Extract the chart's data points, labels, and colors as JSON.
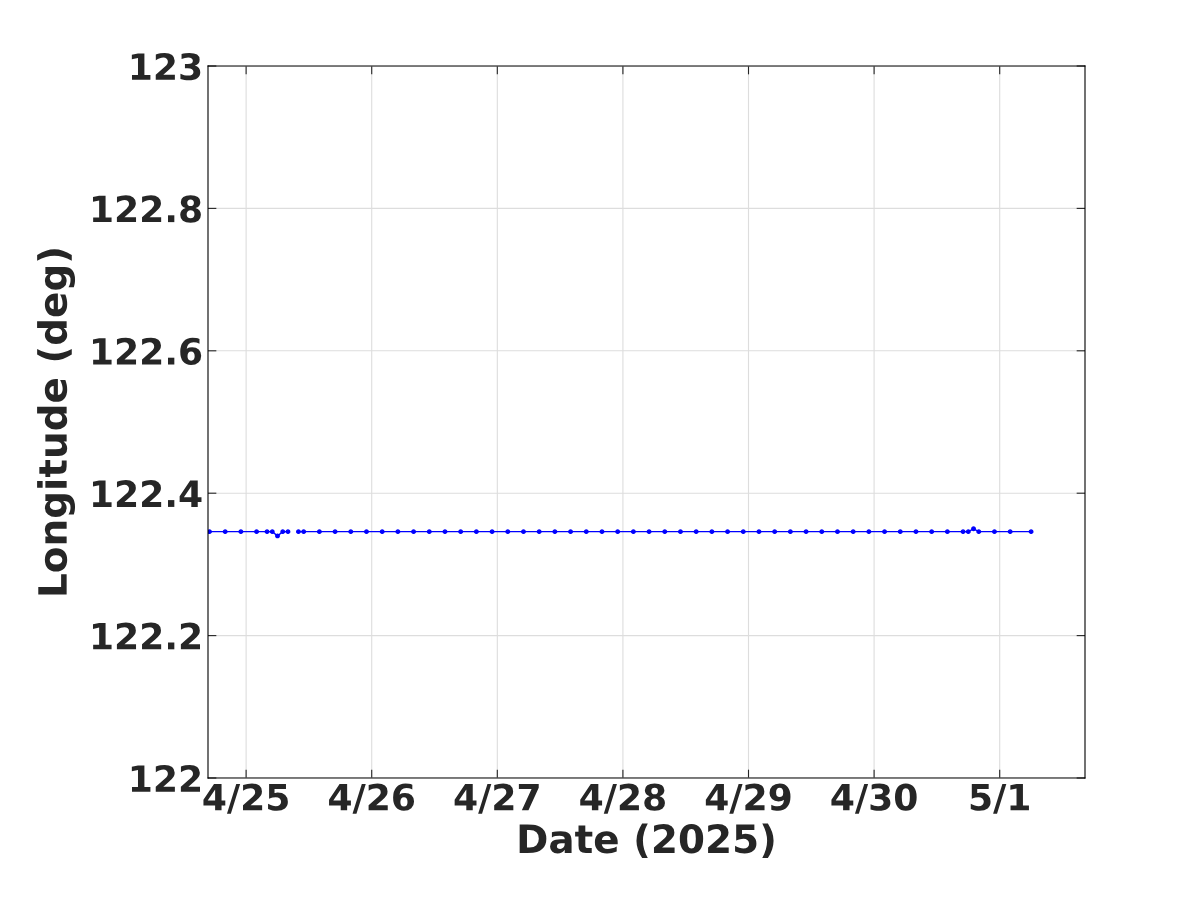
{
  "chart_data": {
    "type": "line",
    "xlabel": "Date (2025)",
    "ylabel": "Longitude (deg)",
    "x": [
      "2025-04-24T17:00",
      "2025-04-24T20:00",
      "2025-04-24T23:00",
      "2025-04-25T02:00",
      "2025-04-25T04:00",
      "2025-04-25T05:00",
      "2025-04-25T06:00",
      "2025-04-25T07:00",
      "2025-04-25T08:00",
      "2025-04-25T09:00",
      "2025-04-25T10:00",
      "2025-04-25T11:00",
      "2025-04-25T14:00",
      "2025-04-25T17:00",
      "2025-04-25T20:00",
      "2025-04-25T23:00",
      "2025-04-26T02:00",
      "2025-04-26T05:00",
      "2025-04-26T08:00",
      "2025-04-26T11:00",
      "2025-04-26T14:00",
      "2025-04-26T17:00",
      "2025-04-26T20:00",
      "2025-04-26T23:00",
      "2025-04-27T02:00",
      "2025-04-27T05:00",
      "2025-04-27T08:00",
      "2025-04-27T11:00",
      "2025-04-27T14:00",
      "2025-04-27T17:00",
      "2025-04-27T20:00",
      "2025-04-27T23:00",
      "2025-04-28T02:00",
      "2025-04-28T05:00",
      "2025-04-28T08:00",
      "2025-04-28T11:00",
      "2025-04-28T14:00",
      "2025-04-28T17:00",
      "2025-04-28T20:00",
      "2025-04-28T23:00",
      "2025-04-29T02:00",
      "2025-04-29T05:00",
      "2025-04-29T08:00",
      "2025-04-29T11:00",
      "2025-04-29T14:00",
      "2025-04-29T17:00",
      "2025-04-29T20:00",
      "2025-04-29T23:00",
      "2025-04-30T02:00",
      "2025-04-30T05:00",
      "2025-04-30T08:00",
      "2025-04-30T11:00",
      "2025-04-30T14:00",
      "2025-04-30T17:00",
      "2025-04-30T18:00",
      "2025-04-30T19:00",
      "2025-04-30T20:00",
      "2025-04-30T23:00",
      "2025-05-01T02:00",
      "2025-05-01T06:00"
    ],
    "series": [
      {
        "color": "#0000ff",
        "values": [
          122.346,
          122.346,
          122.346,
          122.346,
          122.346,
          122.346,
          122.34,
          122.346,
          122.346,
          null,
          122.346,
          122.346,
          122.346,
          122.346,
          122.346,
          122.346,
          122.346,
          122.346,
          122.346,
          122.346,
          122.346,
          122.346,
          122.346,
          122.346,
          122.346,
          122.346,
          122.346,
          122.346,
          122.346,
          122.346,
          122.346,
          122.346,
          122.346,
          122.346,
          122.346,
          122.346,
          122.346,
          122.346,
          122.346,
          122.346,
          122.346,
          122.346,
          122.346,
          122.346,
          122.346,
          122.346,
          122.346,
          122.346,
          122.346,
          122.346,
          122.346,
          122.346,
          122.346,
          122.346,
          122.346,
          122.35,
          122.346,
          122.346,
          122.346,
          122.346
        ]
      }
    ],
    "xlim": [
      "2025-04-24T16:43",
      "2025-05-01T16:18"
    ],
    "xticks": [
      {
        "value": "2025-04-25",
        "label": "4/25"
      },
      {
        "value": "2025-04-26",
        "label": "4/26"
      },
      {
        "value": "2025-04-27",
        "label": "4/27"
      },
      {
        "value": "2025-04-28",
        "label": "4/28"
      },
      {
        "value": "2025-04-29",
        "label": "4/29"
      },
      {
        "value": "2025-04-30",
        "label": "4/30"
      },
      {
        "value": "2025-05-01",
        "label": "5/1"
      }
    ],
    "ylim": [
      122,
      123
    ],
    "yticks": [
      122,
      122.2,
      122.4,
      122.6,
      122.8,
      123
    ],
    "grid": true,
    "marker": "circle",
    "line_style": "solid"
  }
}
